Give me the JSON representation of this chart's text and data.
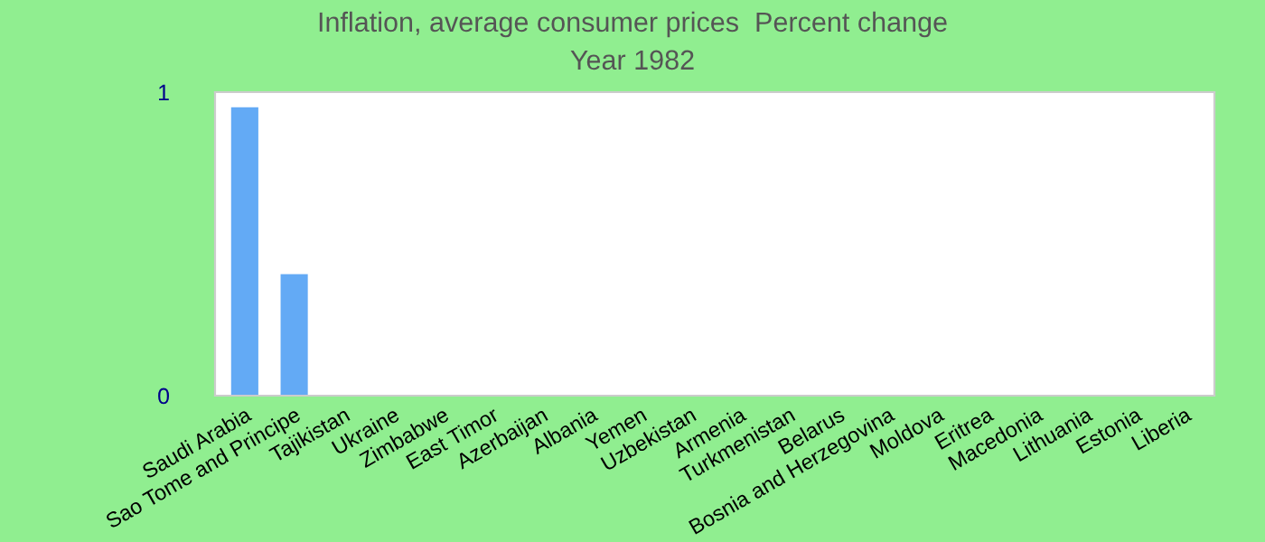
{
  "chart_data": {
    "type": "bar",
    "title": "Inflation, average consumer prices  Percent change",
    "subtitle": "Year 1982",
    "categories": [
      "Saudi Arabia",
      "Sao Tome and Principe",
      "Tajikistan",
      "Ukraine",
      "Zimbabwe",
      "East Timor",
      "Azerbaijan",
      "Albania",
      "Yemen",
      "Uzbekistan",
      "Armenia",
      "Turkmenistan",
      "Belarus",
      "Bosnia and Herzegovina",
      "Moldova",
      "Eritrea",
      "Macedonia",
      "Lithuania",
      "Estonia",
      "Liberia"
    ],
    "values": [
      0.95,
      0.4,
      null,
      null,
      null,
      null,
      null,
      null,
      null,
      null,
      null,
      null,
      null,
      null,
      null,
      null,
      null,
      null,
      null,
      null
    ],
    "color": "#63aaf5",
    "ylim": [
      0,
      1
    ],
    "yticks": [
      0,
      1
    ],
    "grid": false,
    "legend": false
  }
}
